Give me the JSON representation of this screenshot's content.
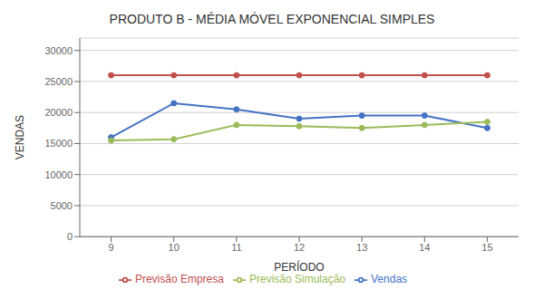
{
  "chart_data": {
    "type": "line",
    "title": "PRODUTO B - MÉDIA MÓVEL EXPONENCIAL SIMPLES",
    "xlabel": "PERÍODO",
    "ylabel": "VENDAS",
    "x": [
      9,
      10,
      11,
      12,
      13,
      14,
      15
    ],
    "xlim": [
      8.5,
      15.5
    ],
    "xticks": [
      9,
      10,
      11,
      12,
      13,
      14,
      15
    ],
    "ylim": [
      0,
      32000
    ],
    "yticks": [
      0,
      5000,
      10000,
      15000,
      20000,
      25000,
      30000
    ],
    "grid": true,
    "legend": "bottom",
    "marker": "circle",
    "series": [
      {
        "name": "Vendas",
        "color": "#4472C4",
        "values": [
          16000,
          21500,
          20500,
          19000,
          19500,
          19500,
          17500
        ]
      },
      {
        "name": "Previsão Empresa",
        "color": "#C0504D",
        "values": [
          26000,
          26000,
          26000,
          26000,
          26000,
          26000,
          26000
        ]
      },
      {
        "name": "Previsão Simulação",
        "color": "#9BBB59",
        "values": [
          15500,
          15700,
          18000,
          17800,
          17500,
          18000,
          18500
        ]
      }
    ]
  }
}
